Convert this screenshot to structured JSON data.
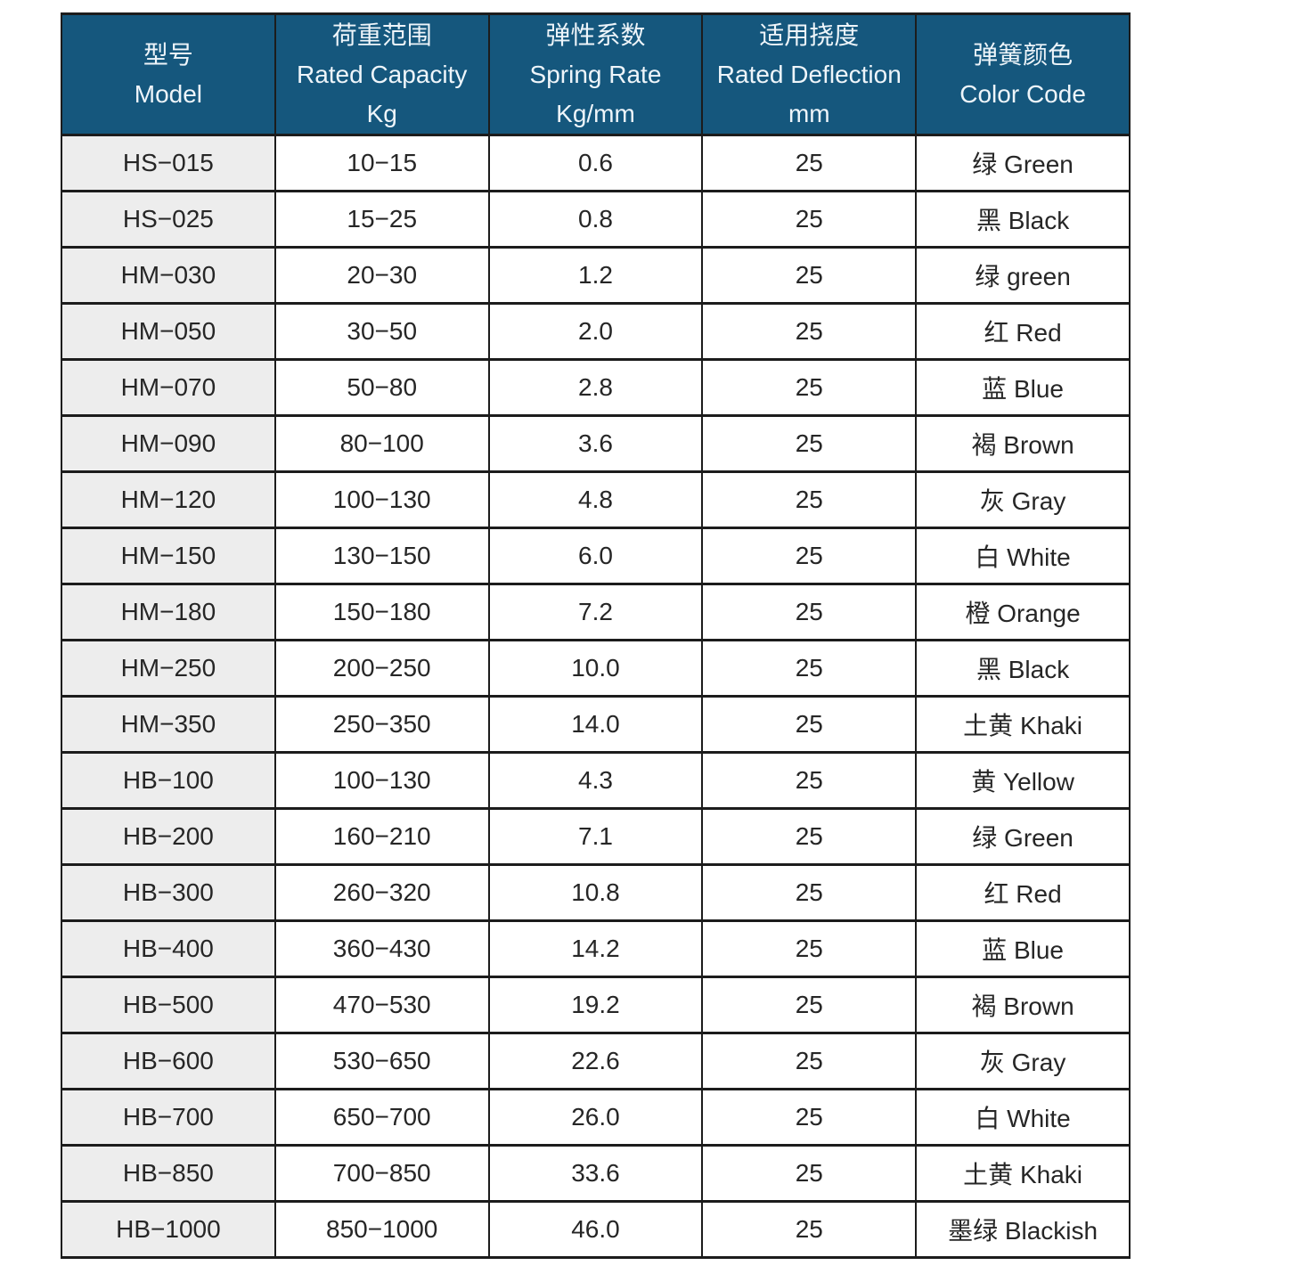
{
  "table": {
    "columns": [
      {
        "zh": "型号",
        "en": "Model",
        "unit": ""
      },
      {
        "zh": "荷重范围",
        "en": "Rated Capacity",
        "unit": "Kg"
      },
      {
        "zh": "弹性系数",
        "en": "Spring Rate",
        "unit": "Kg/mm"
      },
      {
        "zh": "适用挠度",
        "en": "Rated Deflection",
        "unit": "mm"
      },
      {
        "zh": "弹簧颜色",
        "en": "Color Code",
        "unit": ""
      }
    ],
    "rows": [
      [
        "HS−015",
        "10−15",
        "0.6",
        "25",
        "绿 Green"
      ],
      [
        "HS−025",
        "15−25",
        "0.8",
        "25",
        "黑 Black"
      ],
      [
        "HM−030",
        "20−30",
        "1.2",
        "25",
        "绿 green"
      ],
      [
        "HM−050",
        "30−50",
        "2.0",
        "25",
        "红 Red"
      ],
      [
        "HM−070",
        "50−80",
        "2.8",
        "25",
        "蓝 Blue"
      ],
      [
        "HM−090",
        "80−100",
        "3.6",
        "25",
        "褐 Brown"
      ],
      [
        "HM−120",
        "100−130",
        "4.8",
        "25",
        "灰 Gray"
      ],
      [
        "HM−150",
        "130−150",
        "6.0",
        "25",
        "白 White"
      ],
      [
        "HM−180",
        "150−180",
        "7.2",
        "25",
        "橙 Orange"
      ],
      [
        "HM−250",
        "200−250",
        "10.0",
        "25",
        "黑 Black"
      ],
      [
        "HM−350",
        "250−350",
        "14.0",
        "25",
        "土黄 Khaki"
      ],
      [
        "HB−100",
        "100−130",
        "4.3",
        "25",
        "黄 Yellow"
      ],
      [
        "HB−200",
        "160−210",
        "7.1",
        "25",
        "绿 Green"
      ],
      [
        "HB−300",
        "260−320",
        "10.8",
        "25",
        "红 Red"
      ],
      [
        "HB−400",
        "360−430",
        "14.2",
        "25",
        "蓝 Blue"
      ],
      [
        "HB−500",
        "470−530",
        "19.2",
        "25",
        "褐 Brown"
      ],
      [
        "HB−600",
        "530−650",
        "22.6",
        "25",
        "灰 Gray"
      ],
      [
        "HB−700",
        "650−700",
        "26.0",
        "25",
        "白 White"
      ],
      [
        "HB−850",
        "700−850",
        "33.6",
        "25",
        "土黄 Khaki"
      ],
      [
        "HB−1000",
        "850−1000",
        "46.0",
        "25",
        "墨绿 Blackish"
      ]
    ]
  },
  "colors": {
    "header_bg": "#15577d",
    "header_text": "#eef5fa",
    "model_col_bg": "#ededed",
    "cell_bg": "#ffffff",
    "border": "#1c1c1c",
    "text": "#262626",
    "page_bg": "#ffffff"
  }
}
